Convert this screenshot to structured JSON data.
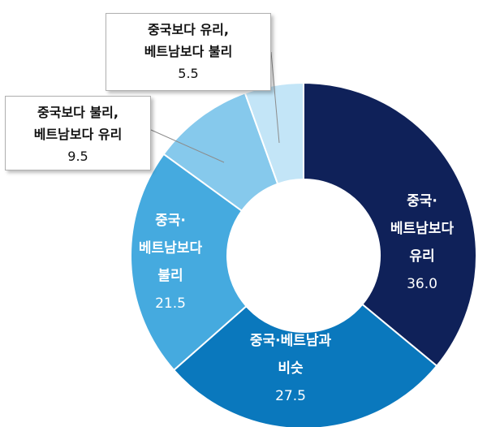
{
  "chart_data": {
    "type": "donut",
    "slices": [
      {
        "label": [
          "중국·",
          "베트남보다",
          "유리"
        ],
        "value": 36.0,
        "display": "36.0",
        "color": "#0f2159",
        "text_color": "#ffffff"
      },
      {
        "label": [
          "중국·베트남과",
          "비슷"
        ],
        "value": 27.5,
        "display": "27.5",
        "color": "#0a78bd",
        "text_color": "#ffffff"
      },
      {
        "label": [
          "중국·",
          "베트남보다",
          "불리"
        ],
        "value": 21.5,
        "display": "21.5",
        "color": "#45aadf",
        "text_color": "#ffffff"
      },
      {
        "label": [
          "중국보다 불리,",
          "베트남보다 유리"
        ],
        "value": 9.5,
        "display": "9.5",
        "color": "#86c9ec",
        "text_color": "#111111"
      },
      {
        "label": [
          "중국보다 유리,",
          "베트남보다 불리"
        ],
        "value": 5.5,
        "display": "5.5",
        "color": "#c3e5f7",
        "text_color": "#111111"
      }
    ]
  }
}
